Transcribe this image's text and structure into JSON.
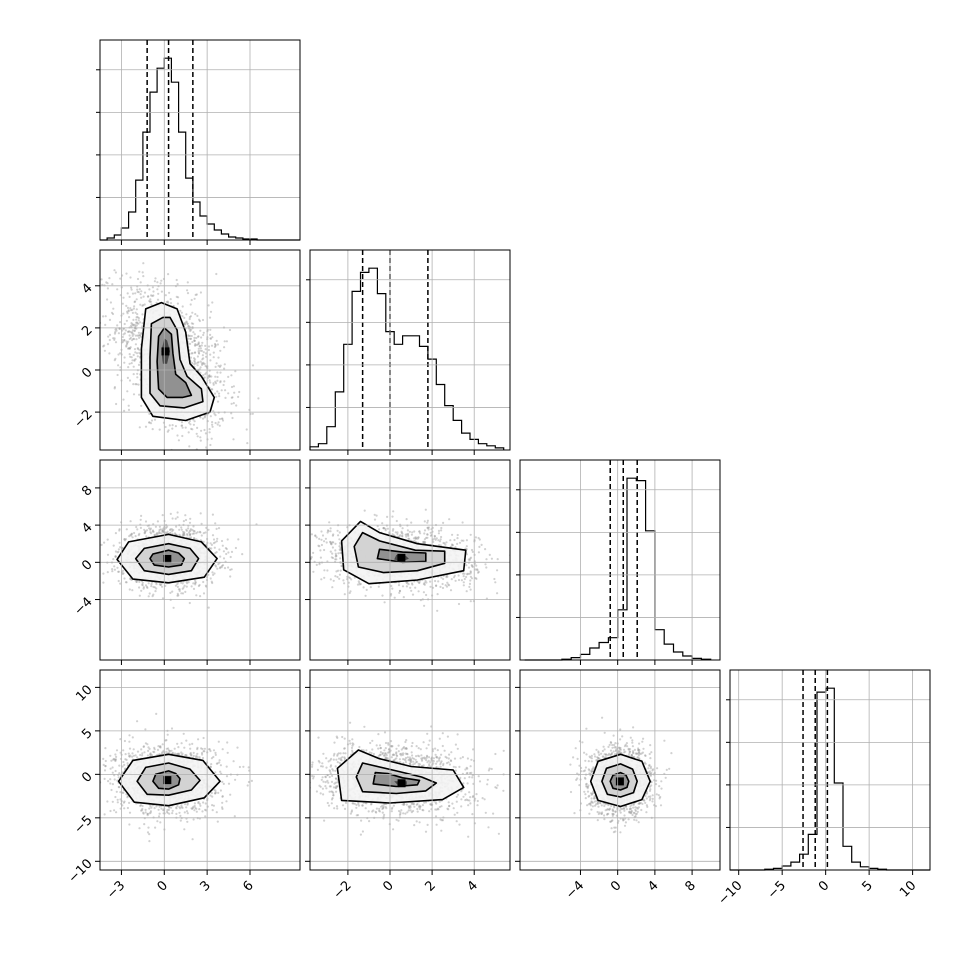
{
  "chart_data": {
    "type": "corner",
    "grid": true,
    "parameters": [
      {
        "range": [
          -4.5,
          9.5
        ],
        "ticks": [
          -3,
          0,
          3,
          6
        ],
        "tick_labels": [
          "−3",
          "0",
          "3",
          "6"
        ],
        "quantiles": [
          -1.2,
          0.3,
          2.0
        ],
        "hist": {
          "edges": [
            -4.5,
            -4.0,
            -3.5,
            -3.0,
            -2.5,
            -2.0,
            -1.5,
            -1.0,
            -0.5,
            0.0,
            0.5,
            1.0,
            1.5,
            2.0,
            2.5,
            3.0,
            3.5,
            4.0,
            4.5,
            5.0,
            5.5,
            6.0,
            6.5,
            7.0,
            7.5,
            8.0,
            8.5,
            9.0,
            9.5
          ],
          "counts": [
            0,
            2,
            5,
            12,
            28,
            60,
            108,
            148,
            172,
            182,
            158,
            108,
            62,
            38,
            24,
            16,
            10,
            6,
            3,
            2,
            1,
            1,
            0,
            0,
            0,
            0,
            0,
            0
          ]
        }
      },
      {
        "range": [
          -3.8,
          5.7
        ],
        "ticks": [
          -2,
          0,
          2,
          4
        ],
        "tick_labels": [
          "−2",
          "0",
          "2",
          "4"
        ],
        "quantiles": [
          -1.3,
          0.0,
          1.8
        ],
        "hist": {
          "edges": [
            -3.8,
            -3.4,
            -3.0,
            -2.6,
            -2.2,
            -1.8,
            -1.4,
            -1.0,
            -0.6,
            -0.2,
            0.2,
            0.6,
            1.0,
            1.4,
            1.8,
            2.2,
            2.6,
            3.0,
            3.4,
            3.8,
            4.2,
            4.6,
            5.0,
            5.4
          ],
          "counts": [
            3,
            6,
            22,
            55,
            100,
            150,
            168,
            172,
            148,
            112,
            100,
            108,
            108,
            98,
            86,
            62,
            42,
            28,
            16,
            10,
            6,
            4,
            2
          ]
        }
      },
      {
        "range": [
          -10.5,
          11
        ],
        "ticks": [
          -4,
          0,
          4,
          8
        ],
        "tick_labels": [
          "−4",
          "0",
          "4",
          "8"
        ],
        "quantiles": [
          -0.8,
          0.6,
          2.1
        ],
        "hist": {
          "edges": [
            -10.0,
            -9.0,
            -8.0,
            -7.0,
            -6.0,
            -5.0,
            -4.0,
            -3.0,
            -2.0,
            -1.0,
            0.0,
            1.0,
            2.0,
            3.0,
            4.0,
            5.0,
            6.0,
            7.0,
            8.0,
            9.0,
            10.0
          ],
          "counts": [
            0,
            0,
            0,
            0,
            1,
            3,
            7,
            15,
            22,
            28,
            63,
            228,
            225,
            162,
            38,
            20,
            10,
            5,
            2,
            1
          ]
        }
      },
      {
        "range": [
          -11,
          12
        ],
        "ticks": [
          -10,
          -5,
          0,
          5,
          10
        ],
        "tick_labels": [
          "−10",
          "−5",
          "0",
          "5",
          "10"
        ],
        "quantiles": [
          -2.6,
          -1.2,
          0.2
        ],
        "hist": {
          "edges": [
            -11,
            -10,
            -9,
            -8,
            -7,
            -6,
            -5,
            -4,
            -3,
            -2,
            -1,
            0,
            1,
            2,
            3,
            4,
            5,
            6,
            7,
            8,
            9,
            10,
            11,
            12
          ],
          "counts": [
            0,
            0,
            0,
            0,
            1,
            2,
            5,
            10,
            20,
            45,
            225,
            230,
            110,
            30,
            10,
            4,
            2,
            1,
            0,
            0,
            0,
            0,
            0
          ]
        }
      }
    ],
    "row_ticks": [
      null,
      {
        "ticks": [
          -2,
          0,
          2,
          4
        ],
        "tick_labels": [
          "−2",
          "0",
          "2",
          "4"
        ]
      },
      {
        "ticks": [
          -4,
          0,
          4,
          8
        ],
        "tick_labels": [
          "−4",
          "0",
          "4",
          "8"
        ]
      },
      {
        "ticks": [
          -10,
          -5,
          0,
          5,
          10
        ],
        "tick_labels": [
          "−10",
          "−5",
          "0",
          "5",
          "10"
        ]
      }
    ],
    "scatter_contours": [
      {
        "row": 1,
        "col": 0,
        "cx": 0.5,
        "cy": 0.5,
        "sx": 1.9,
        "sy": 1.75,
        "rho": -0.45,
        "points": 1600,
        "levels_data_units": [
          [
            [
              -0.2,
              3.2
            ],
            [
              -1.3,
              2.9
            ],
            [
              -1.6,
              1.0
            ],
            [
              -1.6,
              -1.3
            ],
            [
              -0.8,
              -2.2
            ],
            [
              1.5,
              -2.4
            ],
            [
              3.2,
              -2.0
            ],
            [
              3.5,
              -1.3
            ],
            [
              2.6,
              -0.3
            ],
            [
              1.8,
              0.3
            ],
            [
              1.5,
              1.8
            ],
            [
              0.9,
              2.9
            ]
          ],
          [
            [
              -0.1,
              2.5
            ],
            [
              -0.9,
              2.2
            ],
            [
              -1.0,
              0.6
            ],
            [
              -1.0,
              -1.1
            ],
            [
              -0.3,
              -1.7
            ],
            [
              1.4,
              -1.8
            ],
            [
              2.7,
              -1.5
            ],
            [
              2.6,
              -0.9
            ],
            [
              1.6,
              -0.3
            ],
            [
              1.1,
              0.5
            ],
            [
              0.9,
              1.9
            ],
            [
              0.4,
              2.5
            ]
          ],
          [
            [
              0.0,
              2.0
            ],
            [
              -0.4,
              1.6
            ],
            [
              -0.5,
              0.4
            ],
            [
              -0.4,
              -0.9
            ],
            [
              0.2,
              -1.3
            ],
            [
              1.3,
              -1.3
            ],
            [
              1.9,
              -1.2
            ],
            [
              1.5,
              -0.6
            ],
            [
              0.8,
              -0.2
            ],
            [
              0.6,
              0.8
            ],
            [
              0.5,
              1.7
            ]
          ],
          [
            [
              0.0,
              1.5
            ],
            [
              -0.2,
              0.9
            ],
            [
              -0.1,
              0.3
            ],
            [
              0.2,
              0.3
            ],
            [
              0.4,
              0.9
            ],
            [
              0.2,
              1.4
            ]
          ]
        ]
      },
      {
        "row": 2,
        "col": 0,
        "cx": 0.3,
        "cy": 0.6,
        "sx": 1.7,
        "sy": 1.6,
        "rho": 0.0,
        "points": 1600,
        "levels_data_units": [
          [
            [
              0.3,
              3.0
            ],
            [
              -2.5,
              2.2
            ],
            [
              -3.3,
              0.3
            ],
            [
              -2.2,
              -1.8
            ],
            [
              0.3,
              -2.2
            ],
            [
              2.8,
              -1.6
            ],
            [
              3.7,
              0.4
            ],
            [
              2.6,
              2.2
            ]
          ],
          [
            [
              0.3,
              2.0
            ],
            [
              -1.4,
              1.5
            ],
            [
              -2.0,
              0.4
            ],
            [
              -1.4,
              -0.9
            ],
            [
              0.3,
              -1.3
            ],
            [
              1.9,
              -0.9
            ],
            [
              2.4,
              0.4
            ],
            [
              1.8,
              1.5
            ]
          ],
          [
            [
              0.3,
              1.3
            ],
            [
              -0.8,
              0.9
            ],
            [
              -1.0,
              0.4
            ],
            [
              -0.7,
              -0.3
            ],
            [
              0.3,
              -0.5
            ],
            [
              1.2,
              -0.3
            ],
            [
              1.4,
              0.4
            ],
            [
              1.0,
              1.0
            ]
          ]
        ]
      },
      {
        "row": 2,
        "col": 1,
        "cx": 0.4,
        "cy": 0.6,
        "sx": 1.8,
        "sy": 1.6,
        "rho": -0.15,
        "points": 1600,
        "levels_data_units": [
          [
            [
              -1.4,
              4.4
            ],
            [
              -2.3,
              2.3
            ],
            [
              -2.2,
              -0.8
            ],
            [
              -1.0,
              -2.3
            ],
            [
              1.3,
              -1.9
            ],
            [
              3.5,
              -0.9
            ],
            [
              3.6,
              1.3
            ],
            [
              1.3,
              2.0
            ],
            [
              -0.5,
              3.2
            ]
          ],
          [
            [
              -1.3,
              3.2
            ],
            [
              -1.7,
              1.7
            ],
            [
              -1.5,
              -0.5
            ],
            [
              -0.3,
              -1.1
            ],
            [
              1.3,
              -0.9
            ],
            [
              2.6,
              -0.1
            ],
            [
              2.6,
              1.2
            ],
            [
              1.2,
              1.3
            ],
            [
              -0.5,
              2.3
            ]
          ],
          [
            [
              -0.5,
              1.4
            ],
            [
              -0.6,
              0.4
            ],
            [
              0.6,
              0.0
            ],
            [
              1.7,
              0.1
            ],
            [
              1.7,
              1.0
            ],
            [
              0.6,
              1.1
            ]
          ],
          [
            [
              0.3,
              0.8
            ],
            [
              0.2,
              0.3
            ],
            [
              0.6,
              0.1
            ],
            [
              0.9,
              0.4
            ],
            [
              0.7,
              0.8
            ]
          ]
        ]
      },
      {
        "row": 3,
        "col": 0,
        "cx": 0.2,
        "cy": -0.6,
        "sx": 1.8,
        "sy": 2.0,
        "rho": 0.0,
        "points": 1600,
        "levels_data_units": [
          [
            [
              0.3,
              2.3
            ],
            [
              -2.2,
              1.6
            ],
            [
              -3.2,
              -0.8
            ],
            [
              -2.1,
              -3.2
            ],
            [
              0.3,
              -3.6
            ],
            [
              2.8,
              -2.7
            ],
            [
              3.9,
              -0.8
            ],
            [
              2.7,
              1.6
            ]
          ],
          [
            [
              0.3,
              1.3
            ],
            [
              -1.3,
              0.8
            ],
            [
              -1.9,
              -0.8
            ],
            [
              -1.2,
              -2.3
            ],
            [
              0.3,
              -2.4
            ],
            [
              1.9,
              -1.8
            ],
            [
              2.5,
              -0.7
            ],
            [
              1.8,
              0.6
            ]
          ],
          [
            [
              0.3,
              0.4
            ],
            [
              -0.6,
              0.0
            ],
            [
              -0.8,
              -0.8
            ],
            [
              -0.4,
              -1.6
            ],
            [
              0.3,
              -1.7
            ],
            [
              1.0,
              -1.2
            ],
            [
              1.1,
              -0.5
            ],
            [
              0.8,
              0.1
            ]
          ]
        ]
      },
      {
        "row": 3,
        "col": 1,
        "cx": 0.3,
        "cy": -0.6,
        "sx": 1.8,
        "sy": 2.0,
        "rho": -0.1,
        "points": 1600,
        "levels_data_units": [
          [
            [
              -1.5,
              2.8
            ],
            [
              -2.5,
              0.7
            ],
            [
              -2.3,
              -3.0
            ],
            [
              0.0,
              -3.3
            ],
            [
              2.5,
              -2.9
            ],
            [
              3.5,
              -1.5
            ],
            [
              3.0,
              0.5
            ],
            [
              1.0,
              0.9
            ],
            [
              -0.5,
              1.8
            ]
          ],
          [
            [
              -1.3,
              1.3
            ],
            [
              -1.6,
              -0.3
            ],
            [
              -1.3,
              -2.0
            ],
            [
              0.3,
              -2.2
            ],
            [
              1.7,
              -1.9
            ],
            [
              2.2,
              -1.0
            ],
            [
              1.5,
              -0.3
            ],
            [
              0.3,
              0.4
            ]
          ],
          [
            [
              -0.7,
              0.2
            ],
            [
              -0.8,
              -1.1
            ],
            [
              0.3,
              -1.4
            ],
            [
              1.3,
              -1.2
            ],
            [
              1.4,
              -0.7
            ],
            [
              0.6,
              -0.4
            ],
            [
              -0.1,
              0.1
            ]
          ],
          [
            [
              0.2,
              -0.8
            ],
            [
              0.4,
              -1.3
            ],
            [
              0.8,
              -1.2
            ],
            [
              0.8,
              -0.8
            ]
          ]
        ]
      },
      {
        "row": 3,
        "col": 2,
        "cx": 0.3,
        "cy": -0.8,
        "sx": 1.7,
        "sy": 1.9,
        "rho": 0.0,
        "points": 1600,
        "levels_data_units": [
          [
            [
              0.3,
              2.3
            ],
            [
              -2.1,
              1.5
            ],
            [
              -2.9,
              -0.8
            ],
            [
              -2.1,
              -3.0
            ],
            [
              0.3,
              -3.7
            ],
            [
              2.6,
              -2.9
            ],
            [
              3.5,
              -0.8
            ],
            [
              2.6,
              1.5
            ]
          ],
          [
            [
              0.3,
              1.2
            ],
            [
              -1.2,
              0.7
            ],
            [
              -1.7,
              -0.8
            ],
            [
              -1.1,
              -2.3
            ],
            [
              0.3,
              -2.6
            ],
            [
              1.7,
              -2.1
            ],
            [
              2.1,
              -0.8
            ],
            [
              1.6,
              0.6
            ]
          ],
          [
            [
              0.3,
              0.2
            ],
            [
              -0.5,
              -0.1
            ],
            [
              -0.8,
              -0.8
            ],
            [
              -0.5,
              -1.6
            ],
            [
              0.3,
              -1.8
            ],
            [
              1.0,
              -1.5
            ],
            [
              1.2,
              -0.8
            ],
            [
              0.9,
              -0.1
            ]
          ]
        ]
      }
    ]
  }
}
